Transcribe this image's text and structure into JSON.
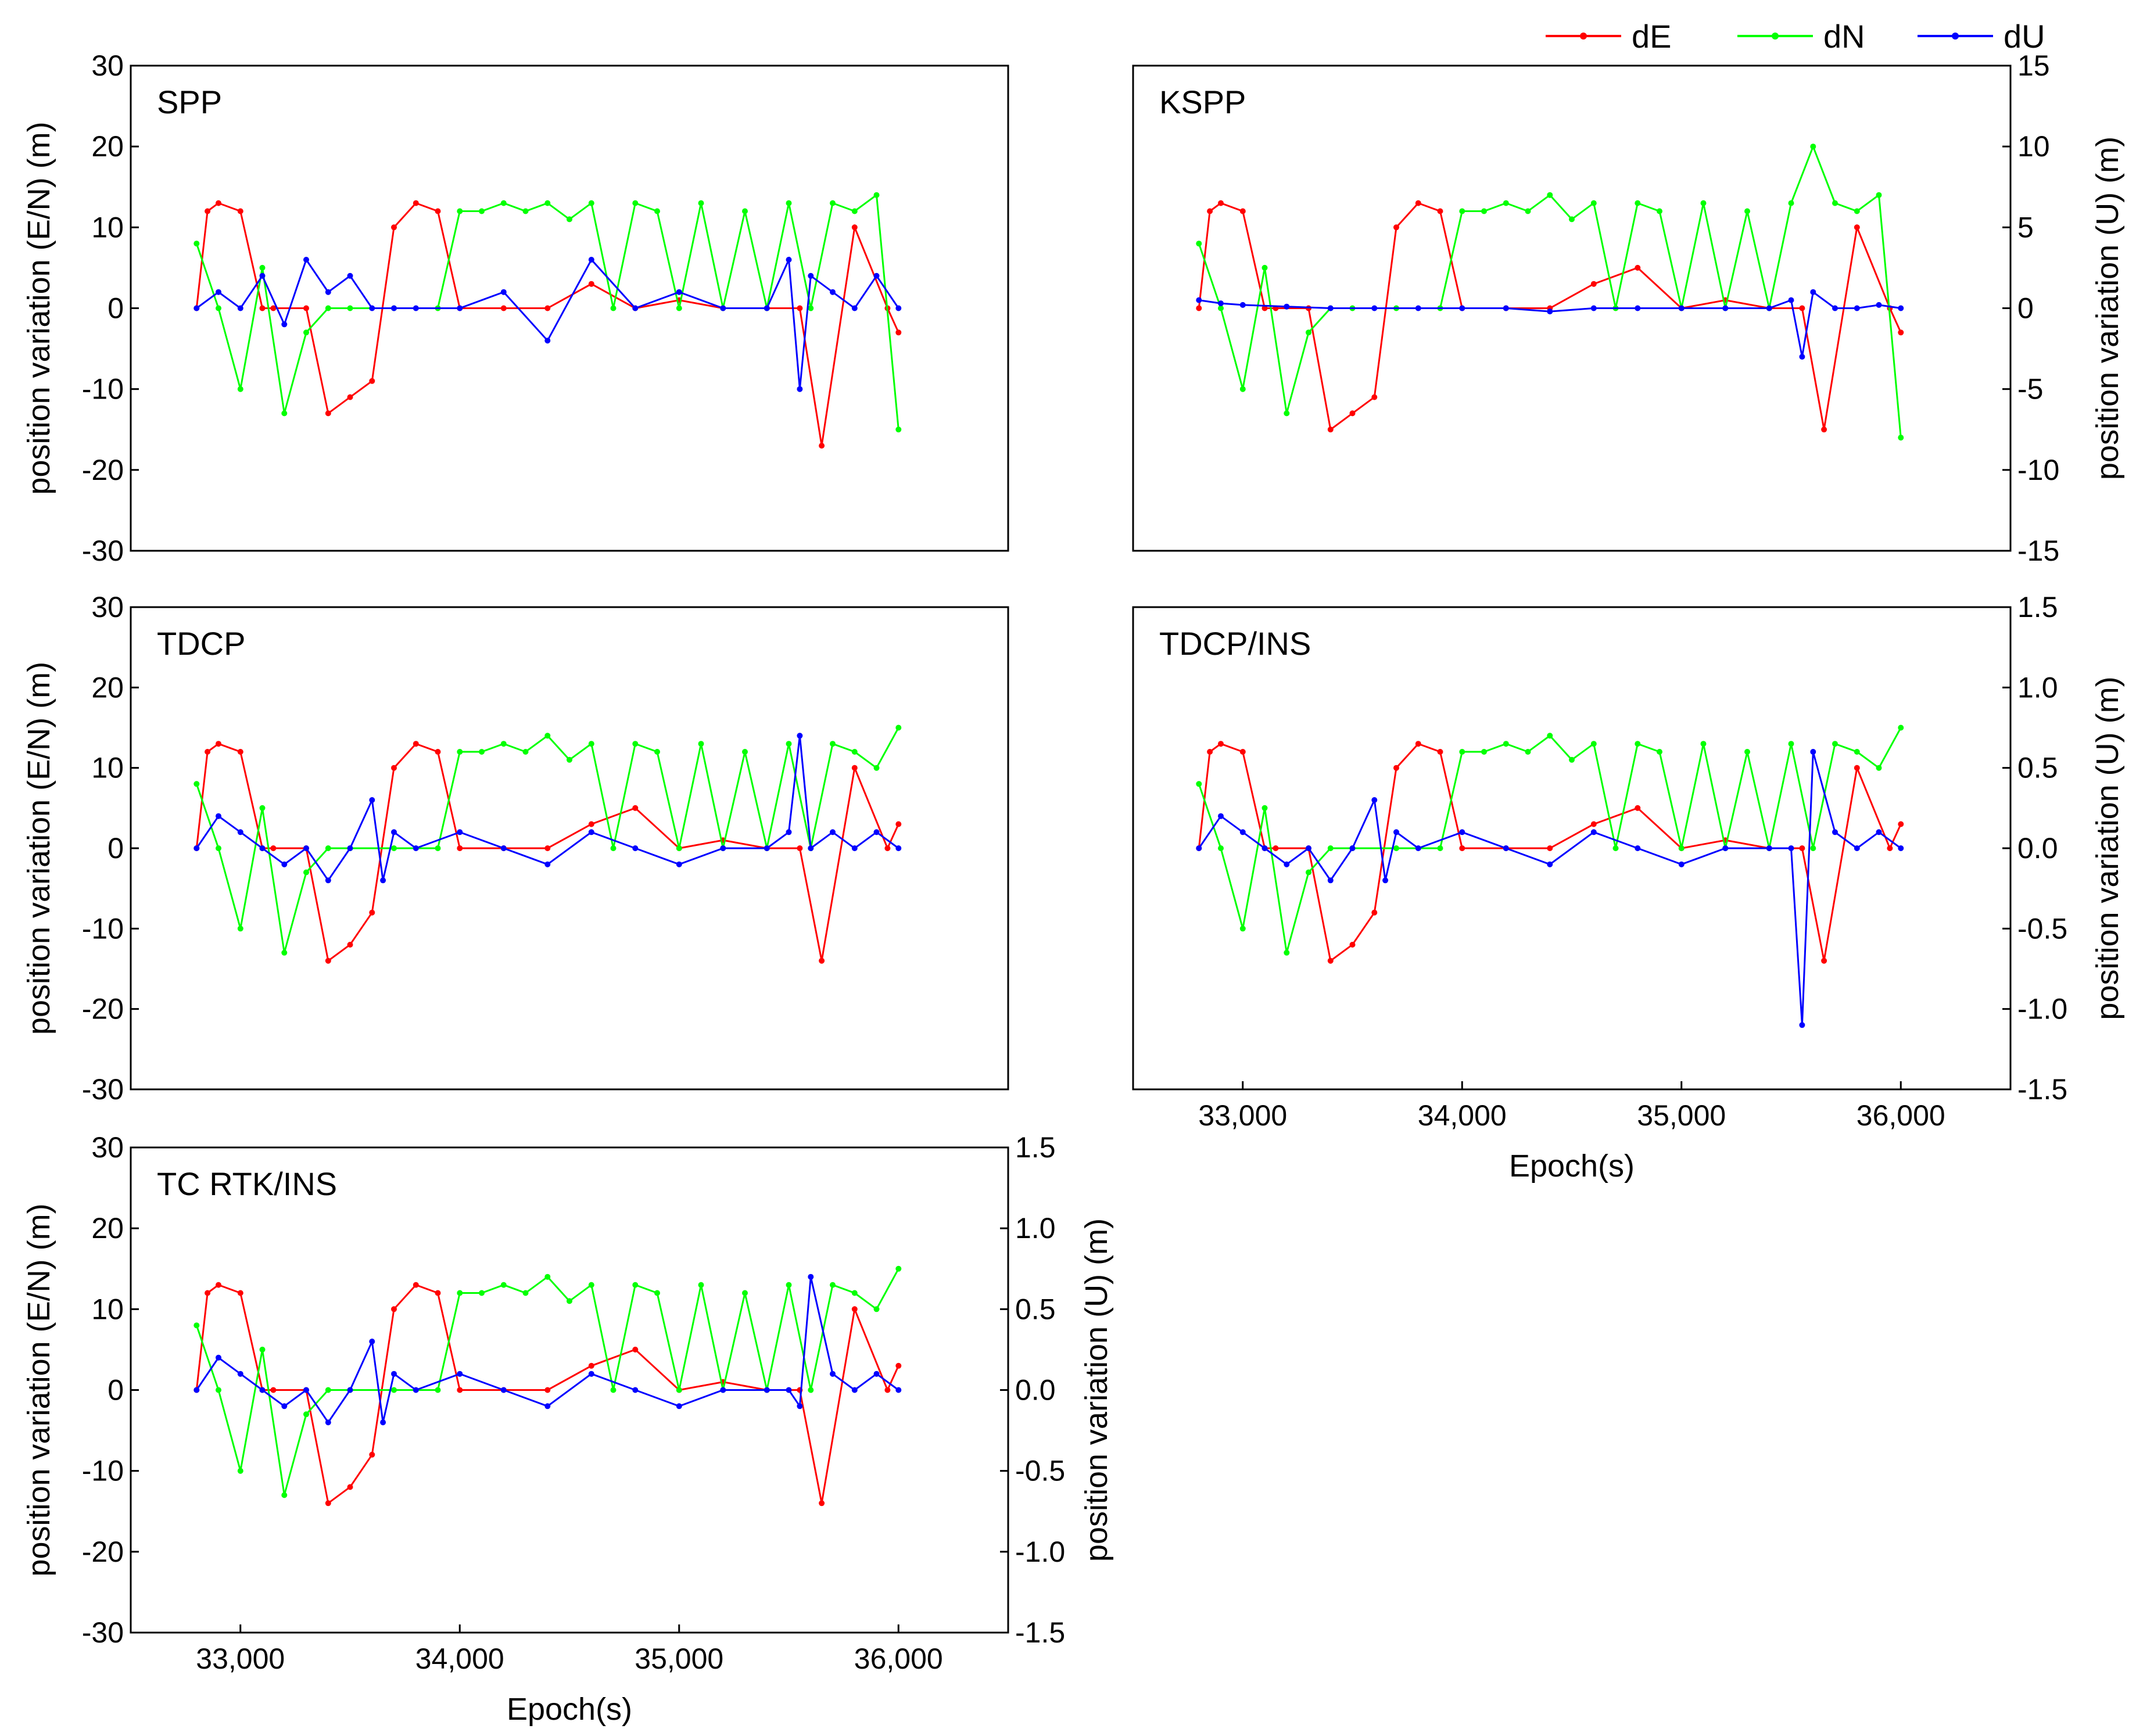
{
  "legend": [
    {
      "key": "dE",
      "label": "dE",
      "color": "#ff0000"
    },
    {
      "key": "dN",
      "label": "dN",
      "color": "#00ff00"
    },
    {
      "key": "dU",
      "label": "dU",
      "color": "#0000ff"
    }
  ],
  "chart_data": [
    {
      "type": "line",
      "title": "SPP",
      "xlabel": "",
      "ylabel_left": "position variation (E/N) (m)",
      "ylabel_right": "",
      "xlim": [
        32500,
        36500
      ],
      "ylim_left": [
        -30,
        30
      ],
      "ylim_right": [
        -15,
        15
      ],
      "yticks_left": [
        "-30",
        "-20",
        "-10",
        "0",
        "10",
        "20",
        "30"
      ],
      "yticks_right": [],
      "xticks": [],
      "series": [
        {
          "name": "dE",
          "axis": "left",
          "x": [
            32800,
            32850,
            32900,
            33000,
            33100,
            33150,
            33300,
            33400,
            33500,
            33600,
            33700,
            33800,
            33900,
            34000,
            34200,
            34400,
            34600,
            34800,
            35000,
            35200,
            35400,
            35550,
            35650,
            35800,
            35950,
            36000
          ],
          "values": [
            0,
            12,
            13,
            12,
            0,
            0,
            0,
            -13,
            -11,
            -9,
            10,
            13,
            12,
            0,
            0,
            0,
            3,
            0,
            1,
            0,
            0,
            0,
            -17,
            10,
            0,
            -3
          ]
        },
        {
          "name": "dN",
          "axis": "left",
          "x": [
            32800,
            32900,
            33000,
            33100,
            33200,
            33300,
            33400,
            33500,
            33700,
            33900,
            34000,
            34100,
            34200,
            34300,
            34400,
            34500,
            34600,
            34700,
            34800,
            34900,
            35000,
            35100,
            35200,
            35300,
            35400,
            35500,
            35600,
            35700,
            35800,
            35900,
            36000
          ],
          "values": [
            8,
            0,
            -10,
            5,
            -13,
            -3,
            0,
            0,
            0,
            0,
            12,
            12,
            13,
            12,
            13,
            11,
            13,
            0,
            13,
            12,
            0,
            13,
            0,
            12,
            0,
            13,
            0,
            13,
            12,
            14,
            -15
          ]
        },
        {
          "name": "dU",
          "axis": "right",
          "x": [
            32800,
            32900,
            33000,
            33100,
            33200,
            33300,
            33400,
            33500,
            33600,
            33700,
            33800,
            34000,
            34200,
            34400,
            34600,
            34800,
            35000,
            35200,
            35400,
            35500,
            35550,
            35600,
            35700,
            35800,
            35900,
            36000
          ],
          "values": [
            0,
            1,
            0,
            2,
            -1,
            3,
            1,
            2,
            0,
            0,
            0,
            0,
            1,
            -2,
            3,
            0,
            1,
            0,
            0,
            3,
            -5,
            2,
            1,
            0,
            2,
            0
          ]
        }
      ]
    },
    {
      "type": "line",
      "title": "KSPP",
      "xlabel": "",
      "ylabel_left": "",
      "ylabel_right": "position variation (U) (m)",
      "xlim": [
        32500,
        36500
      ],
      "ylim_left": [
        -30,
        30
      ],
      "ylim_right": [
        -15,
        15
      ],
      "yticks_left": [],
      "yticks_right": [
        "-15",
        "-10",
        "-5",
        "0",
        "5",
        "10",
        "15"
      ],
      "xticks": [],
      "series": [
        {
          "name": "dE",
          "axis": "left",
          "x": [
            32800,
            32850,
            32900,
            33000,
            33100,
            33150,
            33300,
            33400,
            33500,
            33600,
            33700,
            33800,
            33900,
            34000,
            34200,
            34400,
            34600,
            34800,
            35000,
            35200,
            35400,
            35550,
            35650,
            35800,
            35950,
            36000
          ],
          "values": [
            0,
            12,
            13,
            12,
            0,
            0,
            0,
            -15,
            -13,
            -11,
            10,
            13,
            12,
            0,
            0,
            0,
            3,
            5,
            0,
            1,
            0,
            0,
            -15,
            10,
            0,
            -3
          ]
        },
        {
          "name": "dN",
          "axis": "left",
          "x": [
            32800,
            32900,
            33000,
            33100,
            33200,
            33300,
            33400,
            33500,
            33700,
            33900,
            34000,
            34100,
            34200,
            34300,
            34400,
            34500,
            34600,
            34700,
            34800,
            34900,
            35000,
            35100,
            35200,
            35300,
            35400,
            35500,
            35600,
            35700,
            35800,
            35900,
            36000
          ],
          "values": [
            8,
            0,
            -10,
            5,
            -13,
            -3,
            0,
            0,
            0,
            0,
            12,
            12,
            13,
            12,
            14,
            11,
            13,
            0,
            13,
            12,
            0,
            13,
            0,
            12,
            0,
            13,
            20,
            13,
            12,
            14,
            -16
          ]
        },
        {
          "name": "dU",
          "axis": "right",
          "x": [
            32800,
            32900,
            33000,
            33200,
            33400,
            33600,
            33800,
            34000,
            34200,
            34400,
            34600,
            34800,
            35000,
            35200,
            35400,
            35500,
            35550,
            35600,
            35700,
            35800,
            35900,
            36000
          ],
          "values": [
            0.5,
            0.3,
            0.2,
            0.1,
            0,
            0,
            0,
            0,
            0,
            -0.2,
            0,
            0,
            0,
            0,
            0,
            0.5,
            -3,
            1,
            0,
            0,
            0.2,
            0
          ]
        }
      ]
    },
    {
      "type": "line",
      "title": "TDCP",
      "xlabel": "",
      "ylabel_left": "position variation (E/N) (m)",
      "ylabel_right": "",
      "xlim": [
        32500,
        36500
      ],
      "ylim_left": [
        -30,
        30
      ],
      "ylim_right": [
        -1.5,
        1.5
      ],
      "yticks_left": [
        "-30",
        "-20",
        "-10",
        "0",
        "10",
        "20",
        "30"
      ],
      "yticks_right": [],
      "xticks": [],
      "series": [
        {
          "name": "dE",
          "axis": "left",
          "x": [
            32800,
            32850,
            32900,
            33000,
            33100,
            33150,
            33300,
            33400,
            33500,
            33600,
            33700,
            33800,
            33900,
            34000,
            34200,
            34400,
            34600,
            34800,
            35000,
            35200,
            35400,
            35550,
            35650,
            35800,
            35950,
            36000
          ],
          "values": [
            0,
            12,
            13,
            12,
            0,
            0,
            0,
            -14,
            -12,
            -8,
            10,
            13,
            12,
            0,
            0,
            0,
            3,
            5,
            0,
            1,
            0,
            0,
            -14,
            10,
            0,
            3
          ]
        },
        {
          "name": "dN",
          "axis": "left",
          "x": [
            32800,
            32900,
            33000,
            33100,
            33200,
            33300,
            33400,
            33500,
            33700,
            33900,
            34000,
            34100,
            34200,
            34300,
            34400,
            34500,
            34600,
            34700,
            34800,
            34900,
            35000,
            35100,
            35200,
            35300,
            35400,
            35500,
            35600,
            35700,
            35800,
            35900,
            36000
          ],
          "values": [
            8,
            0,
            -10,
            5,
            -13,
            -3,
            0,
            0,
            0,
            0,
            12,
            12,
            13,
            12,
            14,
            11,
            13,
            0,
            13,
            12,
            0,
            13,
            0,
            12,
            0,
            13,
            0,
            13,
            12,
            10,
            15
          ]
        },
        {
          "name": "dU",
          "axis": "right",
          "x": [
            32800,
            32900,
            33000,
            33100,
            33200,
            33300,
            33400,
            33500,
            33600,
            33650,
            33700,
            33800,
            34000,
            34200,
            34400,
            34600,
            34800,
            35000,
            35200,
            35400,
            35500,
            35550,
            35600,
            35700,
            35800,
            35900,
            36000
          ],
          "values": [
            0,
            0.2,
            0.1,
            0,
            -0.1,
            0,
            -0.2,
            0,
            0.3,
            -0.2,
            0.1,
            0,
            0.1,
            0,
            -0.1,
            0.1,
            0,
            -0.1,
            0,
            0,
            0.1,
            0.7,
            0,
            0.1,
            0,
            0.1,
            0
          ]
        }
      ]
    },
    {
      "type": "line",
      "title": "TDCP/INS",
      "xlabel": "Epoch(s)",
      "ylabel_left": "",
      "ylabel_right": "position variation (U) (m)",
      "xlim": [
        32500,
        36500
      ],
      "ylim_left": [
        -30,
        30
      ],
      "ylim_right": [
        -1.5,
        1.5
      ],
      "yticks_left": [],
      "yticks_right": [
        "-1.5",
        "-1.0",
        "-0.5",
        "0.0",
        "0.5",
        "1.0",
        "1.5"
      ],
      "xticks": [
        "33,000",
        "34,000",
        "35,000",
        "36,000"
      ],
      "series": [
        {
          "name": "dE",
          "axis": "left",
          "x": [
            32800,
            32850,
            32900,
            33000,
            33100,
            33150,
            33300,
            33400,
            33500,
            33600,
            33700,
            33800,
            33900,
            34000,
            34200,
            34400,
            34600,
            34800,
            35000,
            35200,
            35400,
            35550,
            35650,
            35800,
            35950,
            36000
          ],
          "values": [
            0,
            12,
            13,
            12,
            0,
            0,
            0,
            -14,
            -12,
            -8,
            10,
            13,
            12,
            0,
            0,
            0,
            3,
            5,
            0,
            1,
            0,
            0,
            -14,
            10,
            0,
            3
          ]
        },
        {
          "name": "dN",
          "axis": "left",
          "x": [
            32800,
            32900,
            33000,
            33100,
            33200,
            33300,
            33400,
            33500,
            33700,
            33900,
            34000,
            34100,
            34200,
            34300,
            34400,
            34500,
            34600,
            34700,
            34800,
            34900,
            35000,
            35100,
            35200,
            35300,
            35400,
            35500,
            35600,
            35700,
            35800,
            35900,
            36000
          ],
          "values": [
            8,
            0,
            -10,
            5,
            -13,
            -3,
            0,
            0,
            0,
            0,
            12,
            12,
            13,
            12,
            14,
            11,
            13,
            0,
            13,
            12,
            0,
            13,
            0,
            12,
            0,
            13,
            0,
            13,
            12,
            10,
            15
          ]
        },
        {
          "name": "dU",
          "axis": "right",
          "x": [
            32800,
            32900,
            33000,
            33100,
            33200,
            33300,
            33400,
            33500,
            33600,
            33650,
            33700,
            33800,
            34000,
            34200,
            34400,
            34600,
            34800,
            35000,
            35200,
            35400,
            35500,
            35550,
            35600,
            35700,
            35800,
            35900,
            36000
          ],
          "values": [
            0,
            0.2,
            0.1,
            0,
            -0.1,
            0,
            -0.2,
            0,
            0.3,
            -0.2,
            0.1,
            0,
            0.1,
            0,
            -0.1,
            0.1,
            0,
            -0.1,
            0,
            0,
            0,
            -1.1,
            0.6,
            0.1,
            0,
            0.1,
            0
          ]
        }
      ]
    },
    {
      "type": "line",
      "title": "TC RTK/INS",
      "xlabel": "Epoch(s)",
      "ylabel_left": "position variation (E/N) (m)",
      "ylabel_right": "position variation (U) (m)",
      "xlim": [
        32500,
        36500
      ],
      "ylim_left": [
        -30,
        30
      ],
      "ylim_right": [
        -1.5,
        1.5
      ],
      "yticks_left": [
        "-30",
        "-20",
        "-10",
        "0",
        "10",
        "20",
        "30"
      ],
      "yticks_right": [
        "-1.5",
        "-1.0",
        "-0.5",
        "0.0",
        "0.5",
        "1.0",
        "1.5"
      ],
      "xticks": [
        "33,000",
        "34,000",
        "35,000",
        "36,000"
      ],
      "series": [
        {
          "name": "dE",
          "axis": "left",
          "x": [
            32800,
            32850,
            32900,
            33000,
            33100,
            33150,
            33300,
            33400,
            33500,
            33600,
            33700,
            33800,
            33900,
            34000,
            34200,
            34400,
            34600,
            34800,
            35000,
            35200,
            35400,
            35550,
            35650,
            35800,
            35950,
            36000
          ],
          "values": [
            0,
            12,
            13,
            12,
            0,
            0,
            0,
            -14,
            -12,
            -8,
            10,
            13,
            12,
            0,
            0,
            0,
            3,
            5,
            0,
            1,
            0,
            0,
            -14,
            10,
            0,
            3
          ]
        },
        {
          "name": "dN",
          "axis": "left",
          "x": [
            32800,
            32900,
            33000,
            33100,
            33200,
            33300,
            33400,
            33500,
            33700,
            33900,
            34000,
            34100,
            34200,
            34300,
            34400,
            34500,
            34600,
            34700,
            34800,
            34900,
            35000,
            35100,
            35200,
            35300,
            35400,
            35500,
            35600,
            35700,
            35800,
            35900,
            36000
          ],
          "values": [
            8,
            0,
            -10,
            5,
            -13,
            -3,
            0,
            0,
            0,
            0,
            12,
            12,
            13,
            12,
            14,
            11,
            13,
            0,
            13,
            12,
            0,
            13,
            0,
            12,
            0,
            13,
            0,
            13,
            12,
            10,
            15
          ]
        },
        {
          "name": "dU",
          "axis": "right",
          "x": [
            32800,
            32900,
            33000,
            33100,
            33200,
            33300,
            33400,
            33500,
            33600,
            33650,
            33700,
            33800,
            34000,
            34200,
            34400,
            34600,
            34800,
            35000,
            35200,
            35400,
            35500,
            35550,
            35600,
            35700,
            35800,
            35900,
            36000
          ],
          "values": [
            0,
            0.2,
            0.1,
            0,
            -0.1,
            0,
            -0.2,
            0,
            0.3,
            -0.2,
            0.1,
            0,
            0.1,
            0,
            -0.1,
            0.1,
            0,
            -0.1,
            0,
            0,
            0,
            -0.1,
            0.7,
            0.1,
            0,
            0.1,
            0
          ]
        }
      ]
    }
  ]
}
